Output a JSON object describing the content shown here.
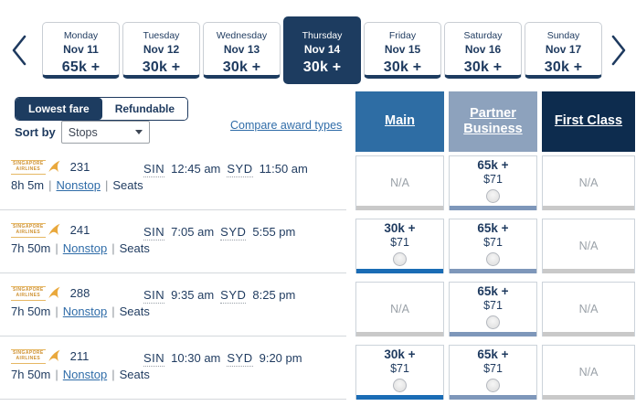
{
  "colors": {
    "navy_text": "#1e3a5f",
    "selected_day_bg": "#1d3c60",
    "main_header_bg": "#2e6da4",
    "partner_header_bg": "#8da2bd",
    "first_header_bg": "#0d2c4e",
    "main_cell_bar": "#1a6cb5",
    "partner_cell_bar": "#7e97ba",
    "na_cell_bar": "#c9c9c9",
    "link_blue": "#2f6ca8",
    "logo_gold": "#e9a83c"
  },
  "carousel": {
    "days": [
      {
        "day": "Monday",
        "date": "Nov 11",
        "miles": "65k +",
        "selected": false
      },
      {
        "day": "Tuesday",
        "date": "Nov 12",
        "miles": "30k +",
        "selected": false
      },
      {
        "day": "Wednesday",
        "date": "Nov 13",
        "miles": "30k +",
        "selected": false
      },
      {
        "day": "Thursday",
        "date": "Nov 14",
        "miles": "30k +",
        "selected": true
      },
      {
        "day": "Friday",
        "date": "Nov 15",
        "miles": "30k +",
        "selected": false
      },
      {
        "day": "Saturday",
        "date": "Nov 16",
        "miles": "30k +",
        "selected": false
      },
      {
        "day": "Sunday",
        "date": "Nov 17",
        "miles": "30k +",
        "selected": false
      }
    ]
  },
  "filters": {
    "toggle": [
      {
        "label": "Lowest fare",
        "selected": true
      },
      {
        "label": "Refundable",
        "selected": false
      }
    ],
    "sort_label": "Sort by",
    "sort_value": "Stops",
    "compare_link": "Compare award types"
  },
  "fare_columns": [
    {
      "id": "main",
      "label": "Main",
      "bg": "#2e6da4",
      "bar": "#1a6cb5"
    },
    {
      "id": "partner-business",
      "label": "Partner Business",
      "bg": "#8da2bd",
      "bar": "#7e97ba"
    },
    {
      "id": "first-class",
      "label": "First Class",
      "bg": "#0d2c4e",
      "bar": "#1e3a5f"
    }
  ],
  "airline_logo": {
    "line1": "SINGAPORE",
    "line2": "AIRLINES",
    "name": "Singapore Airlines"
  },
  "meta_separator": "|",
  "flights": [
    {
      "number": "231",
      "origin": "SIN",
      "dep_time": "12:45 am",
      "dest": "SYD",
      "arr_time": "11:50 am",
      "duration": "8h 5m",
      "stops_label": "Nonstop",
      "seats_label": "Seats",
      "fares": [
        {
          "type": "na",
          "label": "N/A"
        },
        {
          "type": "fare",
          "miles": "65k +",
          "price": "$71"
        },
        {
          "type": "na",
          "label": "N/A"
        }
      ]
    },
    {
      "number": "241",
      "origin": "SIN",
      "dep_time": "7:05 am",
      "dest": "SYD",
      "arr_time": "5:55 pm",
      "duration": "7h 50m",
      "stops_label": "Nonstop",
      "seats_label": "Seats",
      "fares": [
        {
          "type": "fare",
          "miles": "30k +",
          "price": "$71"
        },
        {
          "type": "fare",
          "miles": "65k +",
          "price": "$71"
        },
        {
          "type": "na",
          "label": "N/A"
        }
      ]
    },
    {
      "number": "288",
      "origin": "SIN",
      "dep_time": "9:35 am",
      "dest": "SYD",
      "arr_time": "8:25 pm",
      "duration": "7h 50m",
      "stops_label": "Nonstop",
      "seats_label": "Seats",
      "fares": [
        {
          "type": "na",
          "label": "N/A"
        },
        {
          "type": "fare",
          "miles": "65k +",
          "price": "$71"
        },
        {
          "type": "na",
          "label": "N/A"
        }
      ]
    },
    {
      "number": "211",
      "origin": "SIN",
      "dep_time": "10:30 am",
      "dest": "SYD",
      "arr_time": "9:20 pm",
      "duration": "7h 50m",
      "stops_label": "Nonstop",
      "seats_label": "Seats",
      "fares": [
        {
          "type": "fare",
          "miles": "30k +",
          "price": "$71"
        },
        {
          "type": "fare",
          "miles": "65k +",
          "price": "$71"
        },
        {
          "type": "na",
          "label": "N/A"
        }
      ]
    }
  ]
}
